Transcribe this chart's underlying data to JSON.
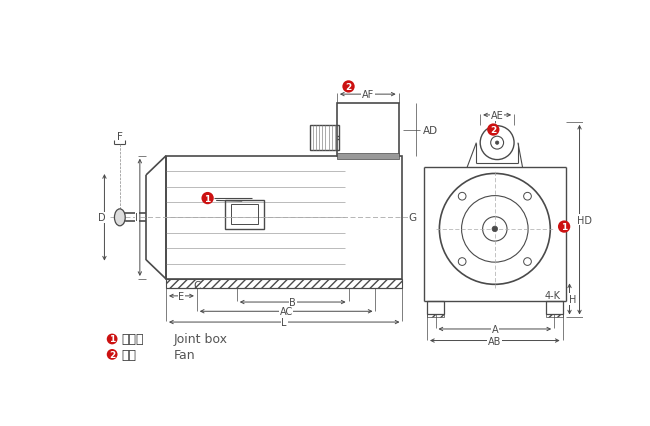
{
  "bg_color": "#ffffff",
  "line_color": "#4a4a4a",
  "dim_color": "#4a4a4a",
  "gray_color": "#888888",
  "hatch_color": "#666666",
  "red_color": "#cc1111",
  "label1_cn": "接线盒",
  "label1_en": "Joint box",
  "label2_cn": "风机",
  "label2_en": "Fan"
}
